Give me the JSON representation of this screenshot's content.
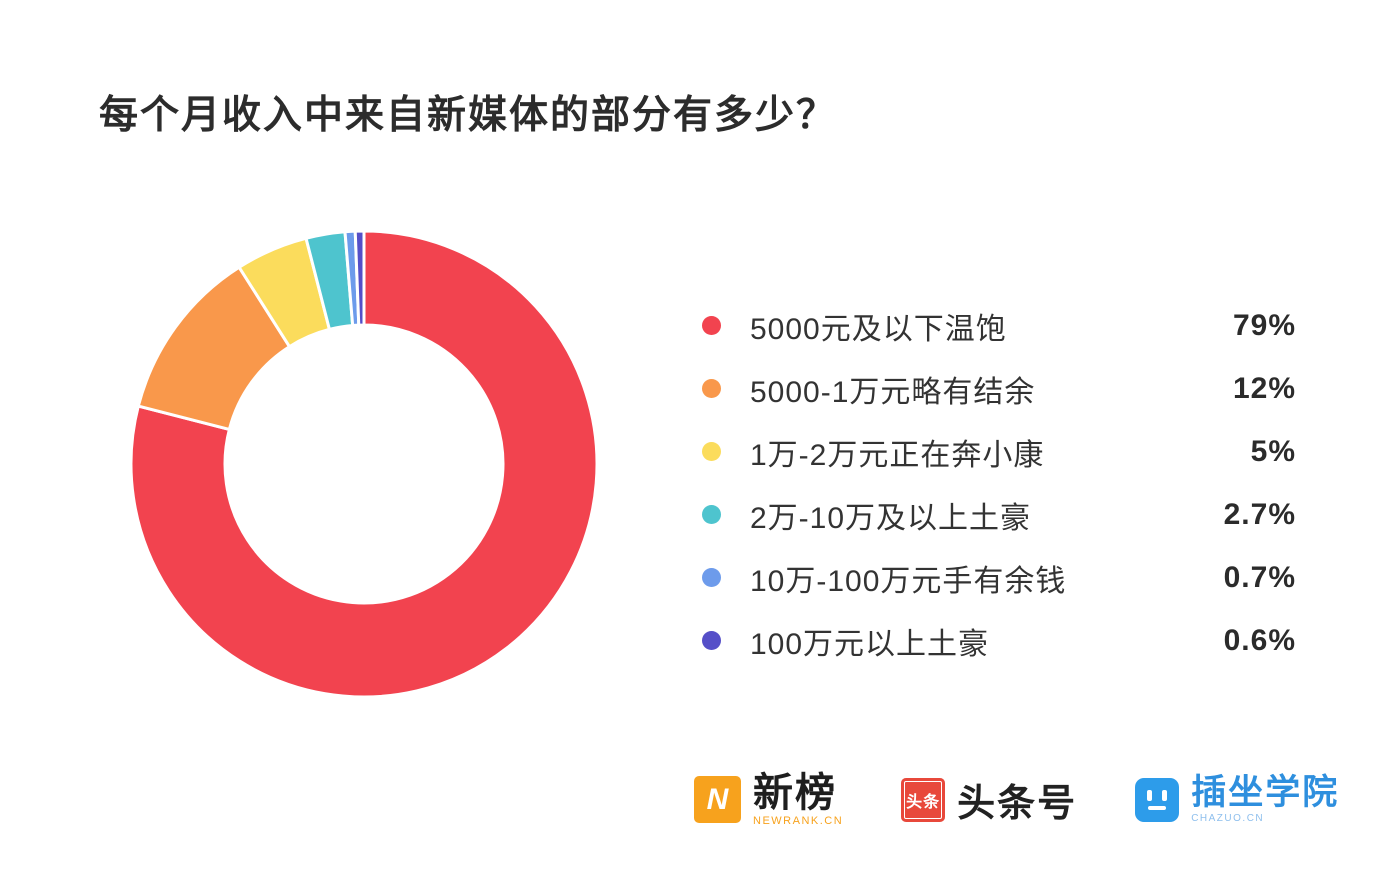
{
  "page": {
    "title": "每个月收入中来自新媒体的部分有多少？"
  },
  "chart_data": {
    "type": "pie",
    "variant": "donut",
    "title": "每个月收入中来自新媒体的部分有多少？",
    "legend_position": "right",
    "start_angle_deg": 0,
    "direction": "clockwise",
    "total": 100,
    "slices": [
      {
        "label": "5000元及以下温饱",
        "value": 79,
        "display": "79%",
        "color": "#f2434f"
      },
      {
        "label": "5000-1万元略有结余",
        "value": 12,
        "display": "12%",
        "color": "#f9984b"
      },
      {
        "label": "1万-2万元正在奔小康",
        "value": 5,
        "display": "5%",
        "color": "#fbdc5c"
      },
      {
        "label": "2万-10万及以上土豪",
        "value": 2.7,
        "display": "2.7%",
        "color": "#4ec4ce"
      },
      {
        "label": "10万-100万元手有余钱",
        "value": 0.7,
        "display": "0.7%",
        "color": "#6d9beb"
      },
      {
        "label": "100万元以上土豪",
        "value": 0.6,
        "display": "0.6%",
        "color": "#554fc8"
      }
    ]
  },
  "footer": {
    "newrank": {
      "icon": "N",
      "label": "新榜",
      "sub": "NEWRANK.CN"
    },
    "toutiao": {
      "icon": "头条",
      "label": "头条号"
    },
    "chazuo": {
      "label": "插坐学院",
      "sub": "CHAZUO.CN"
    }
  }
}
